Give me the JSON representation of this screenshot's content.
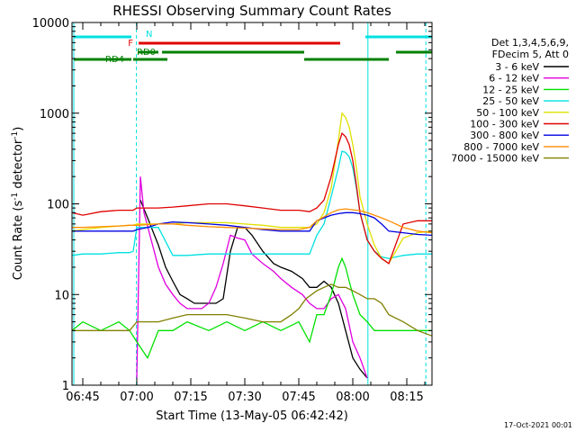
{
  "chart_data": {
    "type": "line",
    "title": "RHESSI Observing Summary Count Rates",
    "xlabel": "Start Time (13-May-05 06:42:42)",
    "ylabel_main": "Count Rate (s",
    "ylabel_sup1": "-1",
    "ylabel_mid": " detector",
    "ylabel_sup2": "-1",
    "ylabel_end": ")",
    "y_scale": "log",
    "ylim": [
      1,
      10000
    ],
    "y_ticks": [
      {
        "value": 1,
        "label": "1"
      },
      {
        "value": 10,
        "label": "10"
      },
      {
        "value": 100,
        "label": "100"
      },
      {
        "value": 1000,
        "label": "1000"
      },
      {
        "value": 10000,
        "label": "10000"
      }
    ],
    "xlim_minutes": [
      42.0,
      142.0
    ],
    "x_ticks": [
      {
        "minutes": 45,
        "label": "06:45"
      },
      {
        "minutes": 60,
        "label": "07:00"
      },
      {
        "minutes": 75,
        "label": "07:15"
      },
      {
        "minutes": 90,
        "label": "07:30"
      },
      {
        "minutes": 105,
        "label": "07:45"
      },
      {
        "minutes": 120,
        "label": "08:00"
      },
      {
        "minutes": 135,
        "label": "08:15"
      }
    ],
    "legend_header": [
      "Det 1,3,4,5,6,9,",
      "FDecim 5, Att 0"
    ],
    "legend_position": "right",
    "series": [
      {
        "name": "3 - 6 keV",
        "color": "#000000",
        "t": [
          42,
          59,
          61,
          63,
          66,
          68,
          70,
          72,
          74,
          76,
          78,
          80,
          82,
          84,
          86,
          88,
          90,
          92,
          95,
          98,
          100,
          103,
          106,
          108,
          110,
          112,
          114,
          116,
          118,
          120,
          122,
          124,
          126,
          128,
          130,
          132,
          135,
          139,
          142
        ],
        "v": [
          null,
          null,
          110,
          70,
          35,
          20,
          14,
          10,
          9,
          8,
          8,
          8,
          8,
          9,
          30,
          55,
          55,
          45,
          30,
          22,
          20,
          18,
          15,
          12,
          12,
          14,
          12,
          8,
          4,
          2,
          1.5,
          1.2,
          null,
          null,
          null,
          null,
          null,
          null,
          null
        ]
      },
      {
        "name": "6 - 12 keV",
        "color": "#e000e0",
        "t": [
          42,
          59,
          60,
          61,
          62,
          64,
          66,
          68,
          70,
          72,
          74,
          76,
          78,
          80,
          82,
          84,
          86,
          88,
          90,
          92,
          95,
          98,
          100,
          103,
          106,
          108,
          110,
          112,
          114,
          116,
          118,
          120,
          122,
          124,
          130,
          142
        ],
        "v": [
          null,
          null,
          1.2,
          200,
          80,
          40,
          20,
          13,
          10,
          8,
          7,
          7,
          7,
          8,
          12,
          22,
          45,
          42,
          40,
          28,
          22,
          18,
          15,
          12,
          10,
          8,
          7,
          7,
          9,
          10,
          7,
          3,
          2,
          1.2,
          null,
          null
        ]
      },
      {
        "name": "12 - 25 keV",
        "color": "#00e000",
        "t": [
          42,
          45,
          50,
          55,
          58,
          60,
          63,
          66,
          70,
          74,
          80,
          85,
          90,
          95,
          100,
          105,
          108,
          110,
          112,
          114,
          116,
          117,
          118,
          119,
          120,
          122,
          124,
          126,
          130,
          135,
          142
        ],
        "v": [
          4,
          5,
          4,
          5,
          4,
          3,
          2,
          4,
          4,
          5,
          4,
          5,
          4,
          5,
          4,
          5,
          3,
          6,
          6,
          10,
          20,
          25,
          20,
          14,
          10,
          6,
          5,
          4,
          4,
          4,
          4
        ]
      },
      {
        "name": "25 - 50 keV",
        "color": "#00e0e0",
        "t": [
          42,
          45,
          50,
          55,
          58,
          59,
          60,
          63,
          66,
          70,
          74,
          80,
          85,
          90,
          95,
          100,
          105,
          108,
          110,
          112,
          114,
          116,
          117,
          118,
          119,
          120,
          121,
          122,
          124,
          126,
          128,
          130,
          134,
          138,
          142
        ],
        "v": [
          27,
          28,
          28,
          29,
          29,
          30,
          55,
          55,
          55,
          27,
          27,
          28,
          28,
          28,
          28,
          28,
          28,
          28,
          45,
          60,
          120,
          250,
          380,
          370,
          330,
          250,
          150,
          80,
          40,
          30,
          26,
          25,
          27,
          28,
          28
        ]
      },
      {
        "name": "50 - 100 keV",
        "color": "#e0e000",
        "t": [
          42,
          45,
          50,
          55,
          58,
          59,
          60,
          63,
          66,
          70,
          74,
          80,
          85,
          90,
          95,
          100,
          105,
          108,
          110,
          112,
          114,
          116,
          117,
          118,
          119,
          120,
          121,
          122,
          124,
          126,
          128,
          130,
          134,
          138,
          142
        ],
        "v": [
          50,
          52,
          55,
          57,
          58,
          58,
          60,
          60,
          60,
          60,
          62,
          62,
          62,
          60,
          58,
          55,
          55,
          55,
          60,
          80,
          150,
          500,
          1000,
          900,
          700,
          450,
          250,
          120,
          60,
          35,
          25,
          22,
          42,
          48,
          50
        ]
      },
      {
        "name": "100 - 300 keV",
        "color": "#e00000",
        "t": [
          42,
          45,
          50,
          55,
          58,
          59,
          60,
          63,
          66,
          70,
          74,
          80,
          85,
          90,
          95,
          100,
          105,
          108,
          110,
          112,
          114,
          116,
          117,
          118,
          119,
          120,
          121,
          122,
          124,
          126,
          128,
          130,
          134,
          138,
          142
        ],
        "v": [
          80,
          75,
          82,
          85,
          85,
          85,
          90,
          90,
          90,
          92,
          95,
          100,
          100,
          95,
          90,
          85,
          85,
          82,
          90,
          110,
          200,
          450,
          600,
          550,
          450,
          300,
          160,
          80,
          40,
          30,
          25,
          22,
          60,
          65,
          65
        ]
      },
      {
        "name": "300 - 800 keV",
        "color": "#0000e0",
        "t": [
          42,
          45,
          50,
          55,
          58,
          59,
          60,
          63,
          66,
          70,
          74,
          80,
          85,
          90,
          95,
          100,
          105,
          108,
          110,
          112,
          114,
          116,
          118,
          120,
          122,
          124,
          126,
          128,
          130,
          134,
          138,
          142
        ],
        "v": [
          50,
          50,
          50,
          50,
          50,
          50,
          52,
          55,
          60,
          63,
          62,
          60,
          58,
          55,
          52,
          50,
          50,
          50,
          65,
          70,
          75,
          78,
          80,
          80,
          78,
          75,
          70,
          60,
          50,
          48,
          46,
          45
        ]
      },
      {
        "name": "800 - 7000 keV",
        "color": "#ff8c00",
        "t": [
          42,
          45,
          50,
          55,
          58,
          59,
          60,
          63,
          66,
          70,
          74,
          80,
          85,
          90,
          95,
          100,
          105,
          108,
          110,
          112,
          114,
          116,
          118,
          120,
          122,
          124,
          126,
          128,
          130,
          134,
          138,
          142
        ],
        "v": [
          55,
          55,
          56,
          57,
          58,
          58,
          58,
          59,
          60,
          60,
          58,
          56,
          55,
          54,
          53,
          52,
          52,
          55,
          65,
          72,
          80,
          86,
          88,
          86,
          84,
          80,
          75,
          70,
          65,
          55,
          50,
          48
        ]
      },
      {
        "name": "7000 - 15000 keV",
        "color": "#808000",
        "t": [
          42,
          45,
          50,
          55,
          58,
          60,
          62,
          64,
          66,
          70,
          74,
          80,
          85,
          90,
          95,
          100,
          103,
          105,
          107,
          110,
          112,
          114,
          116,
          118,
          120,
          122,
          124,
          126,
          128,
          130,
          134,
          138,
          142
        ],
        "v": [
          4,
          4,
          4,
          4,
          4,
          5,
          5,
          5,
          5,
          5.5,
          6,
          6,
          6,
          5.5,
          5,
          5,
          6,
          7,
          9,
          11,
          12,
          13,
          12,
          12,
          11,
          10,
          9,
          9,
          8,
          6,
          5,
          4,
          3.5
        ]
      }
    ],
    "status_bars": [
      {
        "label": "N",
        "color": "#00e0e0",
        "segments": [
          [
            42.5,
            58.5
          ],
          [
            123.5,
            142
          ]
        ]
      },
      {
        "label": "F",
        "color": "#e00000",
        "segments": [
          [
            60.5,
            116.5
          ]
        ]
      },
      {
        "label": "RD0",
        "color": "#008000",
        "segments": [
          [
            60.5,
            66
          ],
          [
            67,
            106.5
          ],
          [
            132,
            142
          ]
        ]
      },
      {
        "label": "RD4",
        "color": "#008000",
        "segments": [
          [
            42.5,
            58.5
          ],
          [
            59,
            68.5
          ],
          [
            106.5,
            130
          ]
        ]
      }
    ],
    "vertical_markers": {
      "solid": [
        42.5,
        124.2
      ],
      "dashed": [
        59.9,
        140.3
      ],
      "color": "#00e0e0"
    }
  },
  "footer_stamp": "17-Oct-2021 00:01"
}
